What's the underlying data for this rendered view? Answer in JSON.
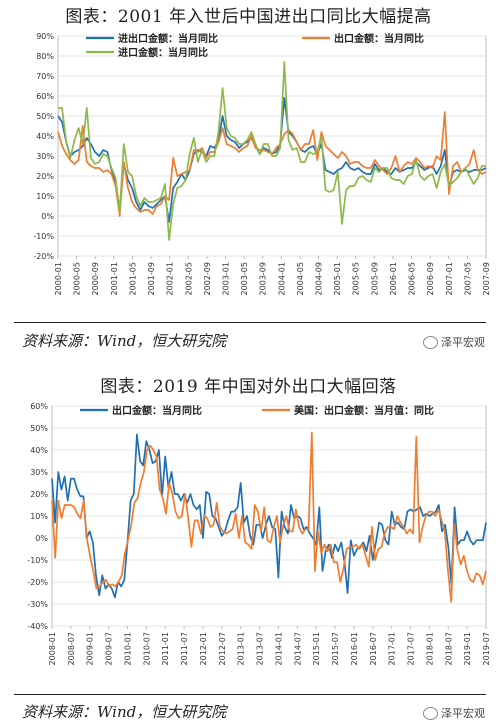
{
  "figures": [
    {
      "title": "图表：2001 年入世后中国进出口同比大幅提高",
      "source": "资料来源：Wind，恒大研究院",
      "watermark": "泽平宏观"
    },
    {
      "title": "图表：2019 年中国对外出口大幅回落",
      "source": "资料来源：Wind，恒大研究院",
      "watermark": "泽平宏观"
    }
  ],
  "chart_data": [
    {
      "type": "line",
      "ylim": [
        -20,
        90
      ],
      "y_ticks": [
        "90%",
        "80%",
        "70%",
        "60%",
        "50%",
        "40%",
        "30%",
        "20%",
        "10%",
        "0%",
        "-10%",
        "-20%"
      ],
      "x_tick_labels": [
        "2000-01",
        "2000-05",
        "2000-09",
        "2001-01",
        "2001-05",
        "2001-09",
        "2002-01",
        "2002-05",
        "2002-09",
        "2003-01",
        "2003-05",
        "2003-09",
        "2004-01",
        "2004-05",
        "2004-09",
        "2005-01",
        "2005-05",
        "2005-09",
        "2006-01",
        "2006-05",
        "2006-09",
        "2007-01",
        "2007-05",
        "2007-09"
      ],
      "grid": true,
      "legend": "top",
      "series": [
        {
          "name": "进出口金额：当月同比",
          "color": "#1f6fb5",
          "values": [
            50,
            47,
            37,
            30,
            32,
            33,
            35,
            39,
            36,
            32,
            30,
            33,
            32,
            23,
            17,
            3,
            26,
            18,
            14,
            7,
            3,
            7,
            5,
            4,
            6,
            8,
            10,
            -3,
            14,
            17,
            21,
            18,
            23,
            31,
            33,
            32,
            30,
            35,
            34,
            38,
            50,
            40,
            38,
            37,
            34,
            36,
            37,
            39,
            35,
            31,
            34,
            33,
            31,
            32,
            36,
            59,
            42,
            40,
            37,
            33,
            32,
            34,
            35,
            31,
            36,
            23,
            22,
            21,
            23,
            24,
            27,
            24,
            23,
            24,
            22,
            21,
            21,
            26,
            23,
            24,
            22,
            21,
            24,
            22,
            23,
            24,
            24,
            27,
            25,
            23,
            24,
            25,
            21,
            25,
            33,
            14,
            22,
            23,
            22,
            23,
            22,
            23,
            23,
            23,
            24
          ]
        },
        {
          "name": "出口金额：当月同比",
          "color": "#f07c30",
          "values": [
            42,
            35,
            31,
            28,
            26,
            28,
            45,
            27,
            25,
            24,
            24,
            22,
            23,
            21,
            15,
            0,
            27,
            14,
            7,
            4,
            2,
            3,
            3,
            1,
            5,
            6,
            10,
            8,
            29,
            20,
            21,
            22,
            23,
            33,
            32,
            34,
            29,
            32,
            32,
            37,
            44,
            36,
            35,
            34,
            32,
            34,
            35,
            40,
            34,
            33,
            33,
            32,
            31,
            34,
            36,
            41,
            43,
            41,
            37,
            33,
            36,
            36,
            43,
            28,
            42,
            35,
            33,
            31,
            29,
            32,
            30,
            26,
            27,
            27,
            25,
            24,
            24,
            28,
            25,
            23,
            21,
            24,
            30,
            22,
            25,
            27,
            26,
            29,
            27,
            24,
            25,
            24,
            30,
            28,
            52,
            11,
            25,
            27,
            22,
            24,
            26,
            33,
            23,
            21,
            22
          ]
        },
        {
          "name": "进口金额：当月同比",
          "color": "#8db84a",
          "values": [
            54,
            54,
            37,
            29,
            38,
            44,
            36,
            54,
            29,
            26,
            27,
            31,
            30,
            24,
            19,
            2,
            36,
            22,
            20,
            10,
            5,
            9,
            7,
            7,
            8,
            9,
            16,
            -12,
            6,
            14,
            15,
            18,
            31,
            39,
            27,
            33,
            27,
            30,
            30,
            42,
            64,
            44,
            40,
            39,
            36,
            36,
            38,
            42,
            36,
            31,
            36,
            36,
            30,
            30,
            34,
            77,
            38,
            33,
            34,
            27,
            27,
            32,
            31,
            32,
            40,
            13,
            12,
            13,
            22,
            -4,
            13,
            15,
            15,
            19,
            20,
            18,
            17,
            24,
            22,
            24,
            24,
            19,
            18,
            18,
            16,
            20,
            21,
            28,
            20,
            18,
            20,
            21,
            14,
            22,
            26,
            15,
            17,
            19,
            22,
            24,
            20,
            16,
            19,
            25,
            25
          ]
        }
      ]
    },
    {
      "type": "line",
      "ylim": [
        -40,
        60
      ],
      "y_ticks": [
        "60%",
        "50%",
        "40%",
        "30%",
        "20%",
        "10%",
        "0%",
        "-10%",
        "-20%",
        "-30%",
        "-40%"
      ],
      "x_tick_labels": [
        "2008-01",
        "2008-07",
        "2009-01",
        "2009-07",
        "2010-01",
        "2010-07",
        "2011-01",
        "2011-07",
        "2012-01",
        "2012-07",
        "2013-01",
        "2013-07",
        "2014-01",
        "2014-07",
        "2015-01",
        "2015-07",
        "2016-01",
        "2016-07",
        "2017-01",
        "2017-07",
        "2018-01",
        "2018-07",
        "2019-01",
        "2019-07"
      ],
      "grid": true,
      "legend": "top",
      "series": [
        {
          "name": "出口金额：当月同比",
          "color": "#1f6fb5",
          "values": [
            27,
            7,
            30,
            22,
            28,
            17,
            27,
            27,
            22,
            19,
            19,
            0,
            3,
            -2,
            -17,
            -26,
            -17,
            -23,
            -21,
            -23,
            -27,
            -20,
            -22,
            -19,
            -2,
            17,
            20,
            47,
            35,
            33,
            44,
            40,
            34,
            35,
            40,
            19,
            37,
            23,
            30,
            20,
            20,
            17,
            20,
            16,
            20,
            15,
            13,
            15,
            0,
            21,
            20,
            10,
            9,
            5,
            1,
            3,
            8,
            12,
            12,
            14,
            25,
            7,
            10,
            1,
            -3,
            6,
            6,
            0,
            6,
            10,
            5,
            4,
            -18,
            12,
            5,
            2,
            15,
            9,
            10,
            9,
            4,
            5,
            2,
            0,
            -3,
            14,
            -15,
            -6,
            -3,
            -9,
            -3,
            -6,
            -2,
            -11,
            -25,
            -1,
            -8,
            -5,
            -4,
            -2,
            -6,
            1,
            -10,
            -2,
            7,
            6,
            -1,
            -3,
            12,
            6,
            7,
            5,
            4,
            12,
            13,
            12,
            13,
            14,
            10,
            11,
            10,
            11,
            12,
            15,
            3,
            6,
            -4,
            -21,
            14,
            -3,
            -1,
            -1,
            3,
            -1,
            -3,
            -1,
            -1,
            -1,
            7
          ]
        },
        {
          "name": "美国：出口金额：当月值：同比",
          "color": "#f07c30",
          "values": [
            17,
            -9,
            17,
            9,
            15,
            15,
            15,
            14,
            11,
            9,
            17,
            0,
            -8,
            -15,
            -23,
            -22,
            -20,
            -19,
            -22,
            -21,
            -22,
            -20,
            -17,
            -7,
            -1,
            6,
            16,
            18,
            25,
            30,
            40,
            42,
            40,
            37,
            22,
            18,
            11,
            25,
            20,
            12,
            9,
            10,
            20,
            9,
            -4,
            8,
            8,
            2,
            10,
            9,
            5,
            6,
            16,
            5,
            3,
            2,
            3,
            4,
            11,
            0,
            10,
            -2,
            -3,
            -5,
            15,
            12,
            3,
            14,
            -1,
            -2,
            5,
            10,
            -2,
            6,
            10,
            3,
            3,
            13,
            5,
            2,
            4,
            4,
            48,
            -15,
            3,
            -7,
            -3,
            -6,
            -3,
            -11,
            -11,
            -20,
            -14,
            -5,
            -4,
            -4,
            -3,
            -5,
            -3,
            -8,
            -13,
            5,
            -10,
            -5,
            -4,
            2,
            5,
            5,
            4,
            10,
            7,
            5,
            2,
            4,
            2,
            46,
            -2,
            5,
            10,
            12,
            12,
            10,
            13,
            8,
            3,
            -15,
            -29,
            6,
            -6,
            -12,
            -8,
            -15,
            -19,
            -20,
            -16,
            -17,
            -21,
            -15
          ]
        }
      ]
    }
  ]
}
